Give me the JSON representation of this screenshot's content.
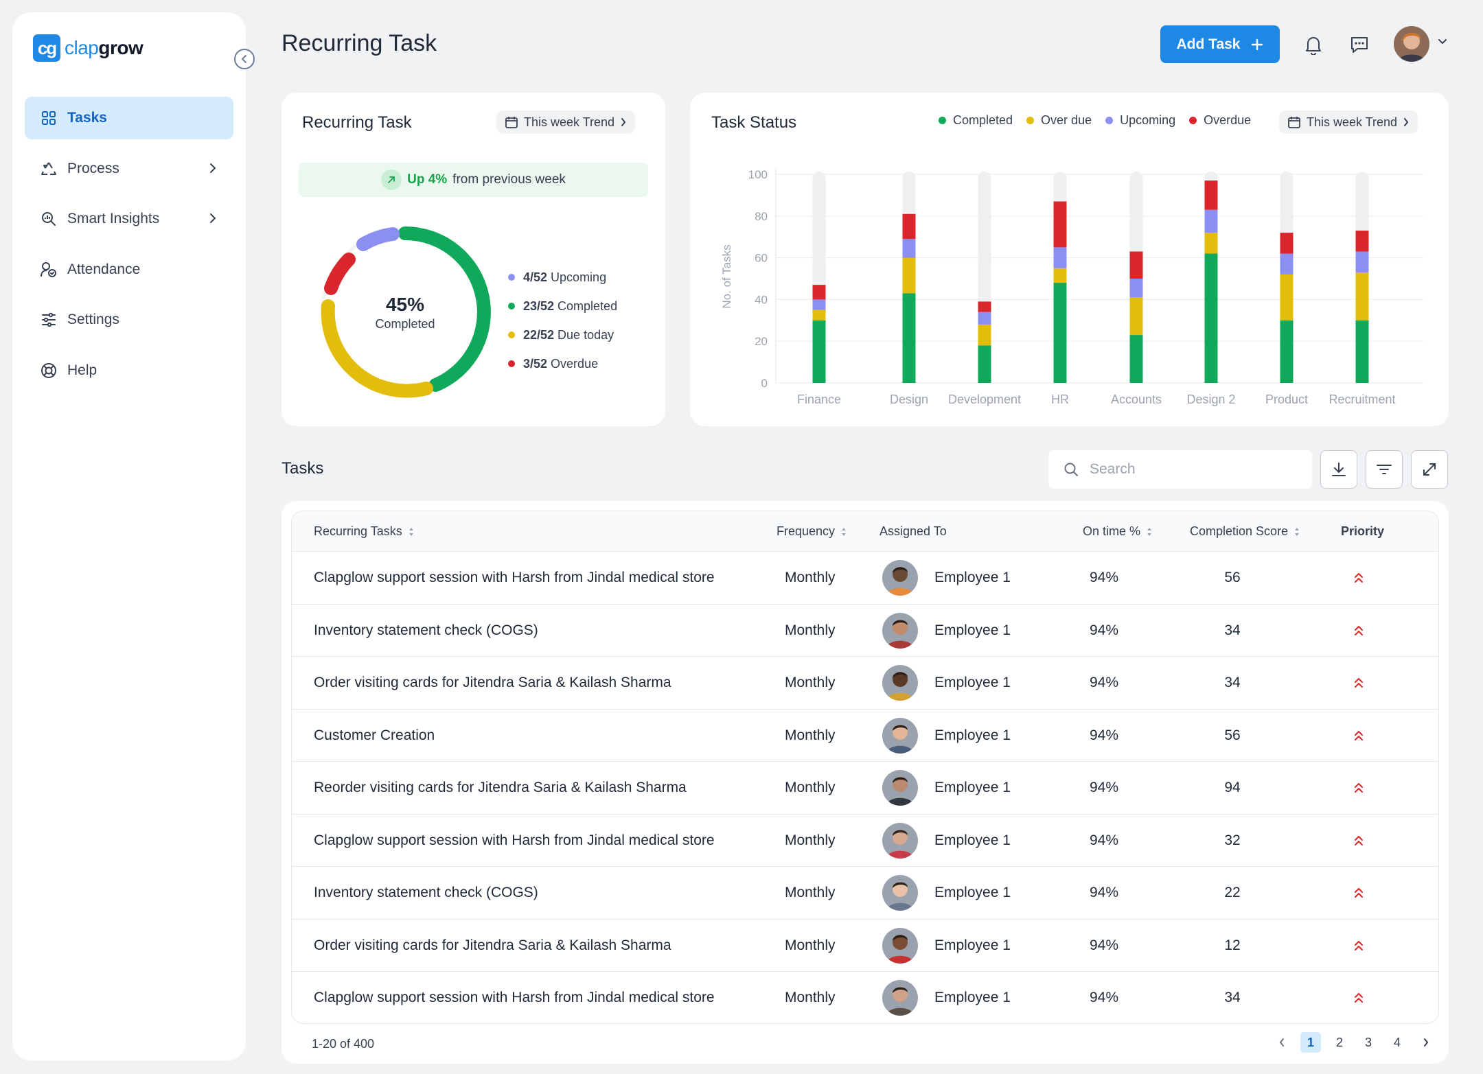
{
  "brand": {
    "mark": "cg",
    "name_a": "clap",
    "name_b": "grow"
  },
  "sidebar": {
    "items": [
      {
        "label": "Tasks",
        "icon": "grid-icon",
        "active": true
      },
      {
        "label": "Process",
        "icon": "recycle-icon",
        "has_chevron": true
      },
      {
        "label": "Smart Insights",
        "icon": "insights-icon",
        "has_chevron": true
      },
      {
        "label": "Attendance",
        "icon": "attendance-icon"
      },
      {
        "label": "Settings",
        "icon": "sliders-icon"
      },
      {
        "label": "Help",
        "icon": "lifebuoy-icon"
      }
    ]
  },
  "header": {
    "title": "Recurring Task",
    "add_label": "Add Task"
  },
  "recurring_card": {
    "title": "Recurring Task",
    "trend_label": "This week Trend",
    "up_value": "Up 4%",
    "up_text": "from previous week",
    "donut_pct": "45%",
    "donut_label": "Completed",
    "legend": [
      {
        "count": "4/52",
        "label": "Upcoming",
        "color": "#8b8ff0"
      },
      {
        "count": "23/52",
        "label": "Completed",
        "color": "#10a95b"
      },
      {
        "count": "22/52",
        "label": "Due today",
        "color": "#e2bd0b"
      },
      {
        "count": "3/52",
        "label": "Overdue",
        "color": "#d9262c"
      }
    ]
  },
  "status_card": {
    "title": "Task Status",
    "trend_label": "This week Trend",
    "legend": [
      {
        "label": "Completed",
        "color": "#10a95b"
      },
      {
        "label": "Over due",
        "color": "#e2bd0b"
      },
      {
        "label": "Upcoming",
        "color": "#8b8ff0"
      },
      {
        "label": "Overdue",
        "color": "#d9262c"
      }
    ]
  },
  "chart_data": {
    "type": "bar",
    "stacked": true,
    "ylabel": "No. of Tasks",
    "xlabel": "",
    "ylim": [
      0,
      100
    ],
    "yticks": [
      0,
      20,
      40,
      60,
      80,
      100
    ],
    "grid": true,
    "categories": [
      "Finance",
      "Design",
      "Development",
      "HR",
      "Accounts",
      "Design 2",
      "Product",
      "Recruitment"
    ],
    "series": [
      {
        "name": "Completed",
        "color": "#10a95b",
        "values": [
          30,
          43,
          18,
          48,
          23,
          62,
          30,
          30
        ]
      },
      {
        "name": "Over due",
        "color": "#e2bd0b",
        "values": [
          5,
          17,
          10,
          7,
          18,
          10,
          22,
          23
        ]
      },
      {
        "name": "Upcoming",
        "color": "#8b8ff0",
        "values": [
          5,
          9,
          6,
          10,
          9,
          11,
          10,
          10
        ]
      },
      {
        "name": "Overdue",
        "color": "#d9262c",
        "values": [
          7,
          12,
          5,
          22,
          13,
          14,
          10,
          10
        ]
      }
    ]
  },
  "tasks": {
    "title": "Tasks",
    "search_placeholder": "Search",
    "columns": [
      "Recurring Tasks",
      "Frequency",
      "Assigned To",
      "On time %",
      "Completion Score",
      "Priority"
    ],
    "rows": [
      {
        "task": "Clapglow support session with Harsh from Jindal medical store",
        "freq": "Monthly",
        "emp": "Employee 1",
        "ontime": "94%",
        "score": "56",
        "skin": "#6b4a35",
        "shirt": "#e98a3a"
      },
      {
        "task": "Inventory statement check (COGS)",
        "freq": "Monthly",
        "emp": "Employee 1",
        "ontime": "94%",
        "score": "34",
        "skin": "#c28a6a",
        "shirt": "#a83a3a"
      },
      {
        "task": "Order visiting cards for Jitendra Saria & Kailash Sharma",
        "freq": "Monthly",
        "emp": "Employee 1",
        "ontime": "94%",
        "score": "34",
        "skin": "#5a3a25",
        "shirt": "#d4a030"
      },
      {
        "task": "Customer Creation",
        "freq": "Monthly",
        "emp": "Employee 1",
        "ontime": "94%",
        "score": "56",
        "skin": "#e2b596",
        "shirt": "#4a5d78"
      },
      {
        "task": "Reorder visiting cards for Jitendra Saria & Kailash Sharma",
        "freq": "Monthly",
        "emp": "Employee 1",
        "ontime": "94%",
        "score": "94",
        "skin": "#b98a70",
        "shirt": "#333840"
      },
      {
        "task": "Clapglow support session with Harsh from Jindal medical store",
        "freq": "Monthly",
        "emp": "Employee 1",
        "ontime": "94%",
        "score": "32",
        "skin": "#d8a990",
        "shirt": "#c83c4a"
      },
      {
        "task": "Inventory statement check (COGS)",
        "freq": "Monthly",
        "emp": "Employee 1",
        "ontime": "94%",
        "score": "22",
        "skin": "#e8c1a8",
        "shirt": "#6a7690"
      },
      {
        "task": "Order visiting cards for Jitendra Saria & Kailash Sharma",
        "freq": "Monthly",
        "emp": "Employee 1",
        "ontime": "94%",
        "score": "12",
        "skin": "#7a4c35",
        "shirt": "#c83030"
      },
      {
        "task": "Clapglow support session with Harsh from Jindal medical store",
        "freq": "Monthly",
        "emp": "Employee 1",
        "ontime": "94%",
        "score": "34",
        "skin": "#d0a288",
        "shirt": "#5a5048"
      }
    ],
    "pagination": {
      "range": "1-20 of 400",
      "pages": [
        "1",
        "2",
        "3",
        "4"
      ],
      "current": "1"
    }
  }
}
